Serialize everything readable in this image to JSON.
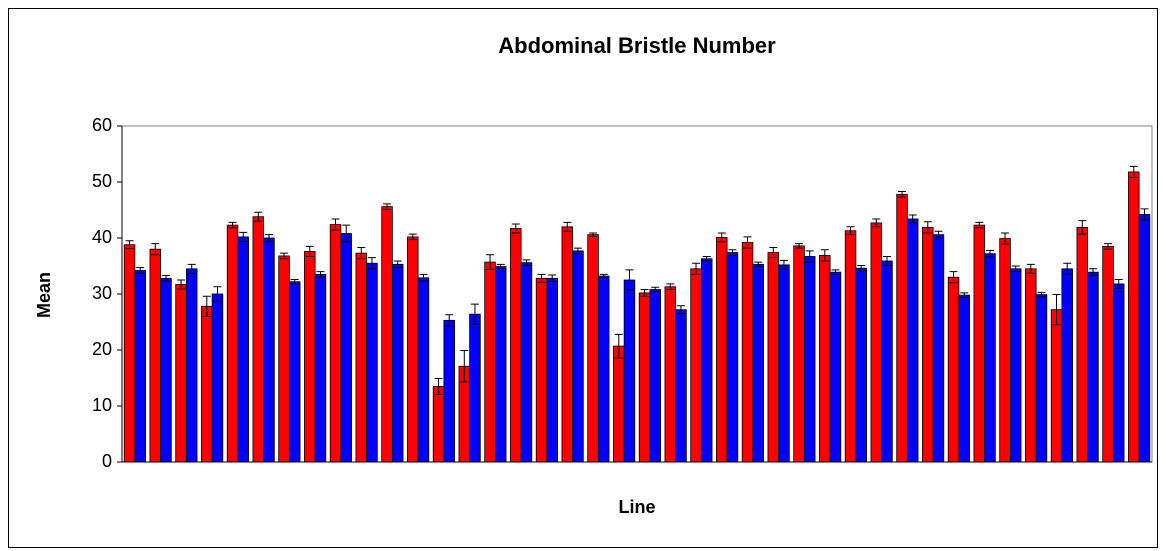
{
  "chart_data": {
    "type": "bar",
    "title": "Abdominal Bristle Number",
    "x_label": "Line",
    "y_label": "Mean",
    "categories": [
      null,
      null,
      null,
      null,
      null,
      null,
      null,
      null,
      null,
      null,
      null,
      null,
      null,
      null,
      null,
      null,
      null,
      null,
      null,
      null,
      null,
      null,
      null,
      null,
      null,
      null,
      null,
      null,
      null,
      null,
      null,
      null,
      null,
      null,
      null,
      null,
      null,
      null,
      null,
      null
    ],
    "series": [
      {
        "color": "#ff0000",
        "values": [
          38.8,
          38.0,
          31.7,
          27.8,
          42.3,
          43.8,
          36.8,
          37.6,
          42.4,
          37.3,
          45.6,
          40.2,
          13.5,
          17.1,
          35.7,
          41.7,
          32.8,
          42.0,
          40.6,
          20.7,
          30.2,
          31.3,
          34.5,
          40.1,
          39.2,
          37.4,
          38.6,
          36.9,
          41.3,
          42.7,
          47.8,
          41.9,
          33.0,
          42.3,
          39.9,
          34.5,
          27.2,
          41.9,
          38.5,
          51.8
        ],
        "errors": [
          0.7,
          1.0,
          0.8,
          1.8,
          0.5,
          0.8,
          0.5,
          0.9,
          1.0,
          1.0,
          0.5,
          0.5,
          1.4,
          2.8,
          1.3,
          0.8,
          0.7,
          0.8,
          0.3,
          2.1,
          0.6,
          0.5,
          1.0,
          0.8,
          1.0,
          0.9,
          0.4,
          1.0,
          0.7,
          0.7,
          0.5,
          1.0,
          1.0,
          0.5,
          1.0,
          0.8,
          2.7,
          1.2,
          0.5,
          1.0
        ]
      },
      {
        "color": "#0000ff",
        "values": [
          34.2,
          32.8,
          34.5,
          30.0,
          40.2,
          40.0,
          32.2,
          33.5,
          40.8,
          35.5,
          35.3,
          32.9,
          25.3,
          26.4,
          34.9,
          35.6,
          32.8,
          37.7,
          33.2,
          32.5,
          30.8,
          27.2,
          36.3,
          37.4,
          35.3,
          35.2,
          36.7,
          33.9,
          34.6,
          35.9,
          43.4,
          40.6,
          29.8,
          37.2,
          34.5,
          29.9,
          34.5,
          33.9,
          31.8,
          44.2
        ],
        "errors": [
          0.5,
          0.5,
          0.8,
          1.3,
          0.8,
          0.6,
          0.4,
          0.5,
          1.5,
          1.0,
          0.6,
          0.6,
          1.0,
          1.8,
          0.4,
          0.5,
          0.6,
          0.5,
          0.3,
          1.8,
          0.4,
          0.7,
          0.4,
          0.5,
          0.4,
          0.8,
          1.0,
          0.4,
          0.5,
          0.8,
          0.7,
          0.6,
          0.4,
          0.6,
          0.5,
          0.4,
          1.0,
          0.6,
          0.8,
          1.0
        ]
      }
    ],
    "ylim": [
      0,
      60
    ],
    "yticks": [
      0,
      10,
      20,
      30,
      40,
      50,
      60
    ],
    "grid": false
  }
}
